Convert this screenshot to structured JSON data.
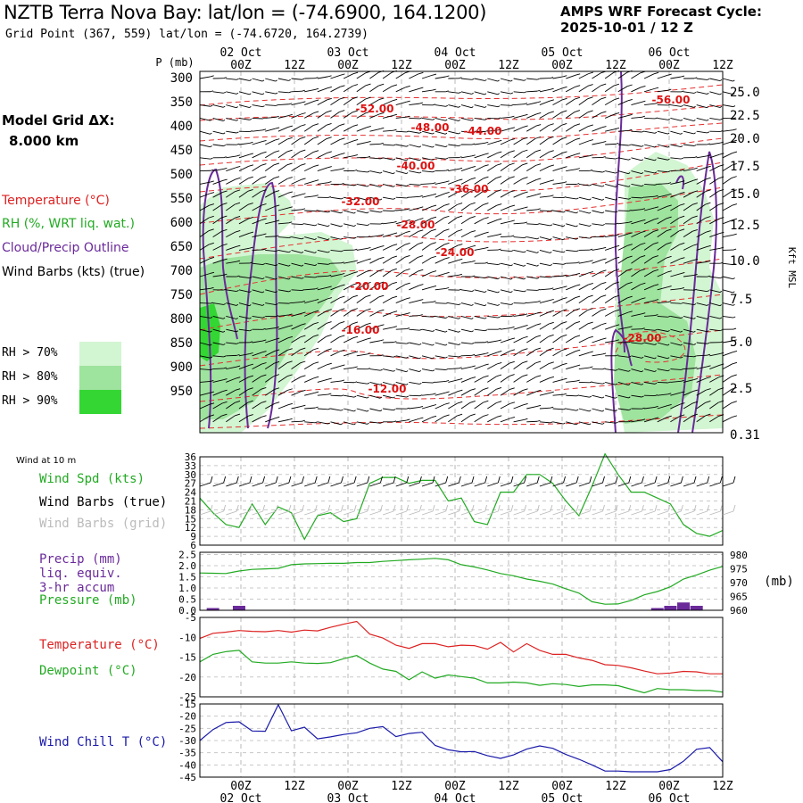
{
  "header": {
    "title": "NZTB Terra Nova Bay:  lat/lon = (-74.6900, 164.1200)",
    "subtitle": "Grid Point (367, 559) lat/lon = (-74.6720, 164.2739)",
    "cycle_label": "AMPS WRF Forecast Cycle:",
    "cycle_value": "2025-10-01 / 12  Z"
  },
  "sidebar": {
    "model_grid_label": "Model Grid ΔX:",
    "model_grid_value": "8.000 km",
    "legend": [
      {
        "label": "Temperature (°C)",
        "color": "#dd2222"
      },
      {
        "label": "RH (%, WRT liq. wat.)",
        "color": "#22aa22"
      },
      {
        "label": "Cloud/Precip Outline",
        "color": "#6a2a9a"
      },
      {
        "label": "Wind Barbs (kts) (true)",
        "color": "#000000"
      }
    ],
    "rh_legend": [
      {
        "label": "RH > 70%",
        "color": "#d2f5d2"
      },
      {
        "label": "RH > 80%",
        "color": "#9ee39e"
      },
      {
        "label": "RH > 90%",
        "color": "#33d633"
      }
    ]
  },
  "time_axis": {
    "ticks": [
      "00Z",
      "12Z",
      "00Z",
      "12Z",
      "00Z",
      "12Z",
      "00Z",
      "12Z",
      "00Z",
      "12Z"
    ],
    "dates": [
      "02 Oct",
      "03 Oct",
      "04 Oct",
      "05 Oct",
      "06 Oct"
    ]
  },
  "chart_data": [
    {
      "type": "contour",
      "name": "cross-section",
      "y_left_label": "P (mb)",
      "y_left_ticks": [
        300,
        350,
        400,
        450,
        500,
        550,
        600,
        650,
        700,
        750,
        800,
        850,
        900,
        950
      ],
      "y_right_label": "Kft MSL",
      "y_right_ticks": [
        "25.0",
        "22.5",
        "20.0",
        "17.5",
        "15.0",
        "12.5",
        "10.0",
        "7.5",
        "5.0",
        "2.5",
        "0.31"
      ],
      "temperature_labels": [
        "-52.00",
        "-56.00",
        "-48.00",
        "-44.00",
        "-40.00",
        "-36.00",
        "-32.00",
        "-28.00",
        "-24.00",
        "-20.00",
        "-16.00",
        "-12.00",
        "-28.00"
      ]
    },
    {
      "type": "line",
      "name": "wind-10m",
      "panel_label": "Wind at 10 m",
      "labels": [
        {
          "text": "Wind Spd (kts)",
          "color": "#22aa22"
        },
        {
          "text": "Wind Barbs (true)",
          "color": "#000000"
        },
        {
          "text": "Wind Barbs (grid)",
          "color": "#bbbbbb"
        }
      ],
      "y_ticks": [
        36,
        33,
        30,
        27,
        24,
        21,
        18,
        15,
        12,
        9,
        6
      ],
      "ylim": [
        6,
        36
      ],
      "x": [
        0,
        1,
        2,
        3,
        4,
        5,
        6,
        7,
        8,
        9,
        10,
        11,
        12,
        13,
        14,
        15,
        16,
        17,
        18,
        19,
        20,
        21,
        22,
        23,
        24,
        25,
        26,
        27,
        28,
        29,
        30,
        31,
        32,
        33,
        34,
        35,
        36,
        37,
        38,
        39,
        40
      ],
      "series": [
        {
          "name": "Wind Spd (kts)",
          "color": "#22aa22",
          "values": [
            22,
            17,
            13,
            12,
            20,
            13,
            19,
            17,
            8,
            16,
            17,
            14,
            15,
            27,
            29,
            29,
            27,
            28,
            28,
            21,
            22,
            14,
            13,
            24,
            24,
            30,
            30,
            27,
            21,
            16,
            26,
            37,
            30,
            24,
            24,
            22,
            20,
            13,
            10,
            9,
            11
          ]
        }
      ]
    },
    {
      "type": "line",
      "name": "precip-pressure",
      "labels": [
        {
          "text": "Precip (mm)",
          "color": "#6a2a9a"
        },
        {
          "text": "liq. equiv.",
          "color": "#6a2a9a"
        },
        {
          "text": "3-hr accum",
          "color": "#6a2a9a"
        },
        {
          "text": "Pressure (mb)",
          "color": "#22aa22"
        }
      ],
      "y_left_ticks": [
        "2.5",
        "2.0",
        "1.5",
        "1.0",
        "0.5",
        "0.0"
      ],
      "y_right_ticks": [
        980,
        975,
        970,
        965,
        960
      ],
      "y_right_unit": "(mb)",
      "ylim_pressure": [
        960,
        981
      ],
      "x": [
        0,
        1,
        2,
        3,
        4,
        5,
        6,
        7,
        8,
        9,
        10,
        11,
        12,
        13,
        14,
        15,
        16,
        17,
        18,
        19,
        20,
        21,
        22,
        23,
        24,
        25,
        26,
        27,
        28,
        29,
        30,
        31,
        32,
        33,
        34,
        35,
        36,
        37,
        38,
        39,
        40
      ],
      "series": [
        {
          "name": "Pressure",
          "color": "#22aa22",
          "values": [
            973.5,
            973.4,
            973.3,
            974.2,
            974.8,
            975,
            975.2,
            976.5,
            976.8,
            976.9,
            977,
            977,
            977.3,
            977.3,
            977.7,
            978,
            978.3,
            978.5,
            978.8,
            978.3,
            976.5,
            975.7,
            974.6,
            973.3,
            972.5,
            971.3,
            970.5,
            969.5,
            967.8,
            966.2,
            963.1,
            962.2,
            962.3,
            963.6,
            965.6,
            966.8,
            968.5,
            971.3,
            972.8,
            974.5,
            975.9
          ]
        }
      ],
      "precip": {
        "name": "Precip",
        "color": "#6a2a9a",
        "values": [
          0,
          0.1,
          0,
          0.2,
          0,
          0,
          0,
          0,
          0,
          0,
          0,
          0,
          0,
          0,
          0,
          0,
          0,
          0,
          0,
          0,
          0,
          0,
          0,
          0,
          0,
          0,
          0,
          0,
          0,
          0,
          0,
          0,
          0,
          0,
          0,
          0.1,
          0.2,
          0.35,
          0.2,
          0,
          0
        ]
      }
    },
    {
      "type": "line",
      "name": "temperature-dewpoint",
      "labels": [
        {
          "text": "Temperature (°C)",
          "color": "#dd2222"
        },
        {
          "text": "Dewpoint (°C)",
          "color": "#22aa22"
        }
      ],
      "y_ticks": [
        -5,
        -10,
        -15,
        -20,
        -25
      ],
      "ylim": [
        -25,
        -5
      ],
      "x": [
        0,
        1,
        2,
        3,
        4,
        5,
        6,
        7,
        8,
        9,
        10,
        11,
        12,
        13,
        14,
        15,
        16,
        17,
        18,
        19,
        20,
        21,
        22,
        23,
        24,
        25,
        26,
        27,
        28,
        29,
        30,
        31,
        32,
        33,
        34,
        35,
        36,
        37,
        38,
        39,
        40
      ],
      "series": [
        {
          "name": "Temperature",
          "color": "#dd2222",
          "values": [
            -10.3,
            -9.0,
            -8.7,
            -8.3,
            -8.5,
            -8.6,
            -8.3,
            -8.7,
            -8.2,
            -8.4,
            -7.5,
            -6.7,
            -6.0,
            -9.2,
            -10.2,
            -12.0,
            -12.8,
            -11.6,
            -11.6,
            -12.4,
            -12.0,
            -12.1,
            -13.0,
            -11.3,
            -13.7,
            -11.6,
            -13.3,
            -14.3,
            -14.3,
            -15.2,
            -15.8,
            -16.9,
            -17.1,
            -17.7,
            -18.5,
            -19.2,
            -19.0,
            -18.6,
            -18.7,
            -19.2,
            -19.2
          ]
        },
        {
          "name": "Dewpoint",
          "color": "#22aa22",
          "values": [
            -16.2,
            -14.3,
            -13.6,
            -13.3,
            -16.2,
            -16.5,
            -16.5,
            -16.2,
            -16.5,
            -16.6,
            -16.4,
            -15.4,
            -14.6,
            -16.5,
            -18.0,
            -18.6,
            -20.7,
            -18.7,
            -20.3,
            -19.5,
            -19.9,
            -20.3,
            -21.5,
            -21.5,
            -21.3,
            -21.5,
            -22.1,
            -21.7,
            -21.9,
            -22.4,
            -22.0,
            -22.0,
            -22.2,
            -23.1,
            -24.0,
            -22.9,
            -23.2,
            -23.2,
            -23.4,
            -23.4,
            -23.8
          ]
        }
      ]
    },
    {
      "type": "line",
      "name": "wind-chill",
      "labels": [
        {
          "text": "Wind Chill T (°C)",
          "color": "#1a1aaa"
        }
      ],
      "y_ticks": [
        -15,
        -20,
        -25,
        -30,
        -35,
        -40,
        -45
      ],
      "ylim": [
        -45,
        -15
      ],
      "x": [
        0,
        1,
        2,
        3,
        4,
        5,
        6,
        7,
        8,
        9,
        10,
        11,
        12,
        13,
        14,
        15,
        16,
        17,
        18,
        19,
        20,
        21,
        22,
        23,
        24,
        25,
        26,
        27,
        28,
        29,
        30,
        31,
        32,
        33,
        34,
        35,
        36,
        37,
        38,
        39,
        40
      ],
      "series": [
        {
          "name": "Wind Chill T",
          "color": "#1a1aaa",
          "values": [
            -30,
            -25.5,
            -22.6,
            -22.3,
            -26.1,
            -26.2,
            -15.3,
            -26.0,
            -24.5,
            -29.3,
            -28.5,
            -27.5,
            -26.8,
            -25.0,
            -24.3,
            -28.4,
            -27.1,
            -26.6,
            -32.0,
            -33.8,
            -34.6,
            -34.5,
            -36.2,
            -37.3,
            -35.9,
            -33.5,
            -32.2,
            -33.2,
            -35.7,
            -37.7,
            -40.0,
            -42.5,
            -42.5,
            -42.8,
            -42.8,
            -42.8,
            -41.9,
            -38.5,
            -33.6,
            -32.9,
            -38.7
          ]
        }
      ]
    }
  ]
}
